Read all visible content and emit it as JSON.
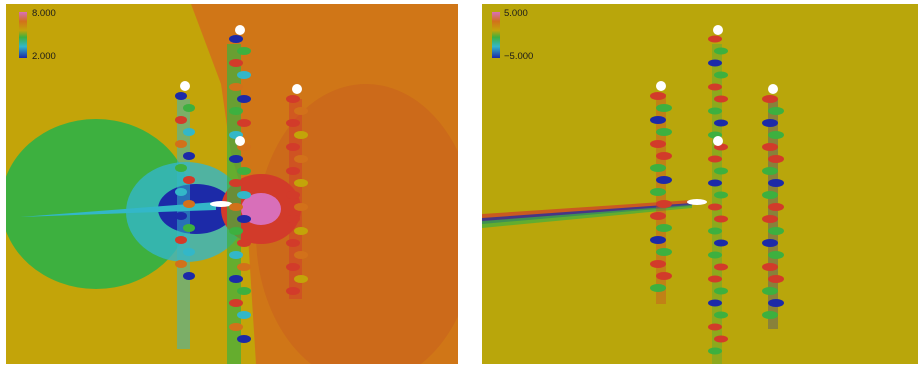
{
  "figures": [
    {
      "id": "left",
      "colorbar": {
        "max_label": "8.000",
        "min_label": "2.000"
      },
      "background_color": "#c3a409"
    },
    {
      "id": "right",
      "colorbar": {
        "max_label": "5.000",
        "min_label": "−5.000"
      },
      "background_color": "#b9a60b"
    }
  ],
  "colors": {
    "red": "#d23b2a",
    "orange": "#d2711a",
    "yellow": "#c3a409",
    "green": "#3db03f",
    "cyan": "#33b7c8",
    "blue": "#1c2aa8",
    "pink": "#d86fb9"
  }
}
